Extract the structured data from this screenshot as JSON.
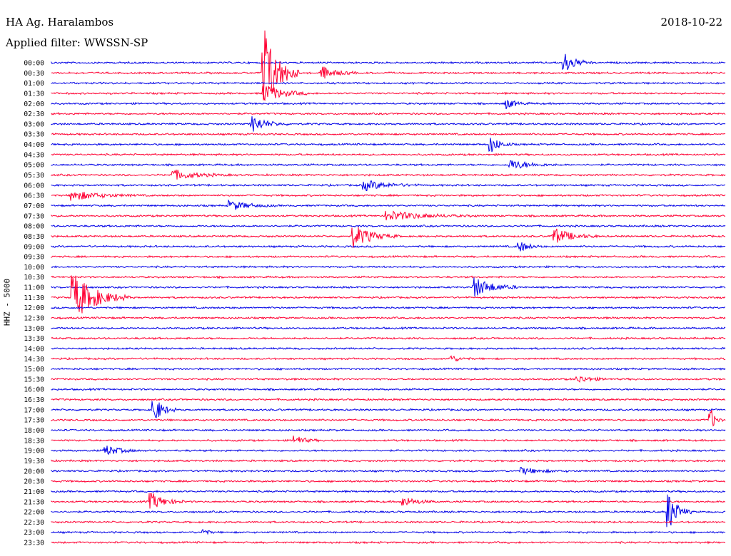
{
  "header": {
    "station": "HA Ag. Haralambos",
    "filter": "Applied filter: WWSSN-SP",
    "date": "2018-10-22"
  },
  "colors": {
    "blue": "#0000e6",
    "red": "#ff0033",
    "text": "#000000"
  },
  "chart_data": {
    "type": "line",
    "title": "HA Ag. Haralambos",
    "subtitle": "Applied filter: WWSSN-SP",
    "date": "2018-10-22",
    "ylabel": "HHZ - 5000",
    "grid": false,
    "legend": "none",
    "x_unit": "minutes past row start",
    "xlim": [
      0,
      30
    ],
    "rows": [
      "00:00",
      "00:30",
      "01:00",
      "01:30",
      "02:00",
      "02:30",
      "03:00",
      "03:30",
      "04:00",
      "04:30",
      "05:00",
      "05:30",
      "06:00",
      "06:30",
      "07:00",
      "07:30",
      "08:00",
      "08:30",
      "09:00",
      "09:30",
      "10:00",
      "10:30",
      "11:00",
      "11:30",
      "12:00",
      "12:30",
      "13:00",
      "13:30",
      "14:00",
      "14:30",
      "15:00",
      "15:30",
      "16:00",
      "16:30",
      "17:00",
      "17:30",
      "18:00",
      "18:30",
      "19:00",
      "19:30",
      "20:00",
      "20:30",
      "21:00",
      "21:30",
      "22:00",
      "22:30",
      "23:00",
      "23:30"
    ],
    "trace_colors": [
      "blue",
      "red"
    ],
    "events": [
      {
        "row": "00:00",
        "minute": 22.9,
        "amp": 6,
        "dur": 1.2
      },
      {
        "row": "00:30",
        "minute": 12.1,
        "amp": 4,
        "dur": 1.5
      },
      {
        "row": "00:30",
        "minute": 9.5,
        "amp": 30,
        "dur": 1.5
      },
      {
        "row": "01:30",
        "minute": 9.5,
        "amp": 6,
        "dur": 2.0
      },
      {
        "row": "02:00",
        "minute": 20.3,
        "amp": 3,
        "dur": 1.0
      },
      {
        "row": "03:00",
        "minute": 9.0,
        "amp": 5,
        "dur": 1.5
      },
      {
        "row": "04:00",
        "minute": 19.6,
        "amp": 5,
        "dur": 1.0
      },
      {
        "row": "05:00",
        "minute": 20.5,
        "amp": 3,
        "dur": 2.0
      },
      {
        "row": "05:30",
        "minute": 5.5,
        "amp": 3,
        "dur": 2.5
      },
      {
        "row": "06:00",
        "minute": 14.0,
        "amp": 3,
        "dur": 2.5
      },
      {
        "row": "06:30",
        "minute": 1.0,
        "amp": 3,
        "dur": 3.0
      },
      {
        "row": "07:00",
        "minute": 8.0,
        "amp": 3,
        "dur": 2.0
      },
      {
        "row": "07:30",
        "minute": 15.0,
        "amp": 3,
        "dur": 4.0
      },
      {
        "row": "08:30",
        "minute": 13.5,
        "amp": 7,
        "dur": 2.0
      },
      {
        "row": "08:30",
        "minute": 22.4,
        "amp": 5,
        "dur": 2.0
      },
      {
        "row": "09:00",
        "minute": 20.9,
        "amp": 3,
        "dur": 1.0
      },
      {
        "row": "11:00",
        "minute": 18.9,
        "amp": 6,
        "dur": 2.0
      },
      {
        "row": "11:30",
        "minute": 1.0,
        "amp": 15,
        "dur": 2.5
      },
      {
        "row": "14:30",
        "minute": 17.8,
        "amp": 2,
        "dur": 1.0
      },
      {
        "row": "15:30",
        "minute": 23.5,
        "amp": 2,
        "dur": 1.5
      },
      {
        "row": "17:00",
        "minute": 4.6,
        "amp": 8,
        "dur": 1.0
      },
      {
        "row": "17:30",
        "minute": 29.4,
        "amp": 6,
        "dur": 0.5
      },
      {
        "row": "18:30",
        "minute": 10.9,
        "amp": 3,
        "dur": 1.0
      },
      {
        "row": "19:00",
        "minute": 2.5,
        "amp": 3,
        "dur": 1.5
      },
      {
        "row": "20:00",
        "minute": 21.0,
        "amp": 2,
        "dur": 2.0
      },
      {
        "row": "21:30",
        "minute": 4.5,
        "amp": 5,
        "dur": 1.5
      },
      {
        "row": "21:30",
        "minute": 15.7,
        "amp": 3,
        "dur": 1.5
      },
      {
        "row": "22:00",
        "minute": 27.5,
        "amp": 12,
        "dur": 1.0
      },
      {
        "row": "23:00",
        "minute": 6.8,
        "amp": 2,
        "dur": 0.5
      }
    ]
  }
}
